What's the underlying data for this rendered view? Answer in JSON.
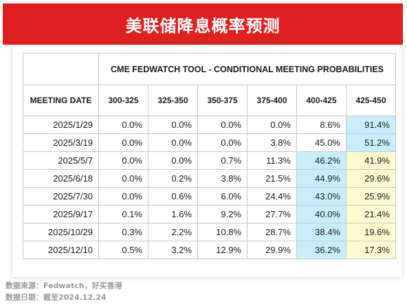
{
  "banner": {
    "title": "美联储降息概率预测"
  },
  "table": {
    "tool_title": "CME FEDWATCH TOOL - CONDITIONAL MEETING PROBABILITIES",
    "date_header": "MEETING DATE",
    "columns": [
      "300-325",
      "325-350",
      "350-375",
      "375-400",
      "400-425",
      "425-450"
    ],
    "rows": [
      {
        "date": "2025/1/29",
        "values": [
          "0.0%",
          "0.0%",
          "0.0%",
          "0.0%",
          "8.6%",
          "91.4%"
        ]
      },
      {
        "date": "2025/3/19",
        "values": [
          "0.0%",
          "0.0%",
          "0.0%",
          "3.8%",
          "45.0%",
          "51.2%"
        ]
      },
      {
        "date": "2025/5/7",
        "values": [
          "0.0%",
          "0.0%",
          "0.7%",
          "11.3%",
          "46.2%",
          "41.9%"
        ]
      },
      {
        "date": "2025/6/18",
        "values": [
          "0.0%",
          "0.2%",
          "3.8%",
          "21.5%",
          "44.9%",
          "29.6%"
        ]
      },
      {
        "date": "2025/7/30",
        "values": [
          "0.0%",
          "0.6%",
          "6.0%",
          "24.4%",
          "43.0%",
          "25.9%"
        ]
      },
      {
        "date": "2025/9/17",
        "values": [
          "0.1%",
          "1.6%",
          "9.2%",
          "27.7%",
          "40.0%",
          "21.4%"
        ]
      },
      {
        "date": "2025/10/29",
        "values": [
          "0.3%",
          "2.2%",
          "10.8%",
          "28.7%",
          "38.4%",
          "19.6%"
        ]
      },
      {
        "date": "2025/12/10",
        "values": [
          "0.5%",
          "3.2%",
          "12.9%",
          "29.9%",
          "36.2%",
          "17.3%"
        ]
      }
    ],
    "highlights": {
      "blue": [
        [
          0,
          5
        ],
        [
          1,
          5
        ],
        [
          2,
          4
        ],
        [
          3,
          4
        ],
        [
          4,
          4
        ],
        [
          5,
          4
        ],
        [
          6,
          4
        ],
        [
          7,
          4
        ]
      ],
      "yellow": [
        [
          2,
          5
        ],
        [
          3,
          5
        ],
        [
          4,
          5
        ],
        [
          5,
          5
        ],
        [
          6,
          5
        ],
        [
          7,
          5
        ]
      ]
    }
  },
  "footer": {
    "source": "数据来源：Fedwatch，好买香港",
    "date": "数据日期：截至2024.12.24"
  },
  "colors": {
    "banner": "#e02020",
    "highlight_blue": "#c8eefb",
    "highlight_yellow": "#fbfbd2"
  }
}
